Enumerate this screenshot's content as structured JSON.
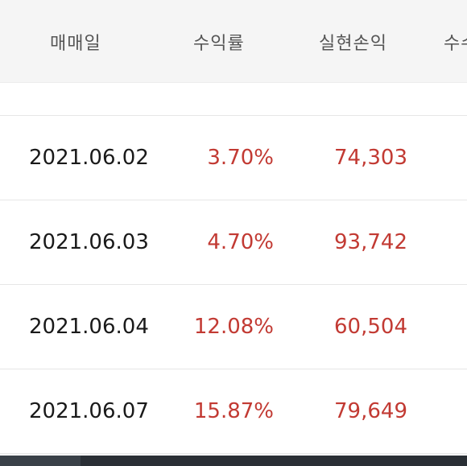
{
  "table": {
    "headers": [
      "매매일",
      "수익률",
      "실현손익",
      "수수"
    ],
    "rows": [
      {
        "date": "2021.06.02",
        "rate": "3.70%",
        "pnl": "74,303"
      },
      {
        "date": "2021.06.03",
        "rate": "4.70%",
        "pnl": "93,742"
      },
      {
        "date": "2021.06.04",
        "rate": "12.08%",
        "pnl": "60,504"
      },
      {
        "date": "2021.06.07",
        "rate": "15.87%",
        "pnl": "79,649"
      }
    ]
  },
  "colors": {
    "header_bg": "#f5f5f5",
    "header_text": "#555555",
    "date_text": "#1a1a1a",
    "profit_text": "#c23a33",
    "divider": "#e6e6e6"
  }
}
